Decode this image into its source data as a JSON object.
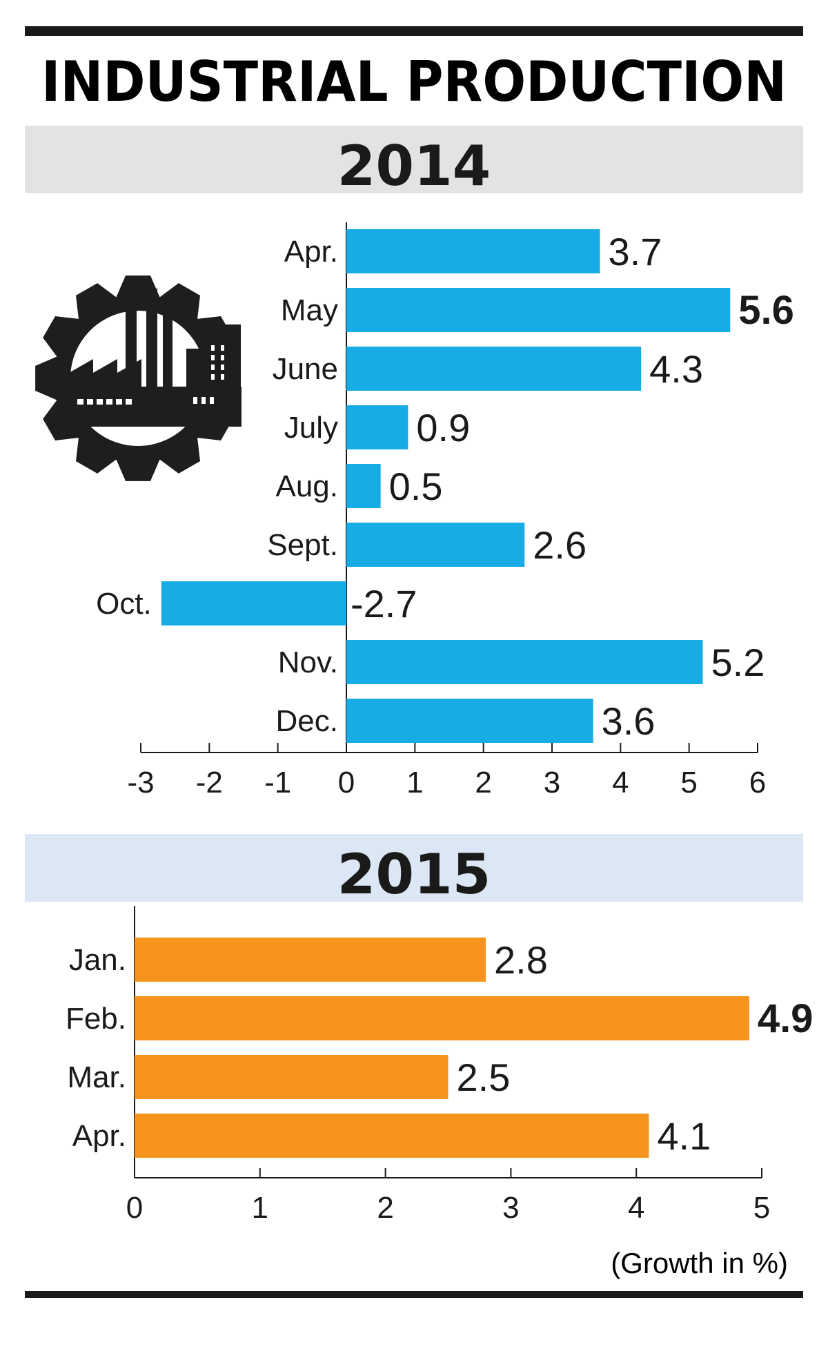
{
  "title": "INDUSTRIAL PRODUCTION",
  "note": "(Growth in %)",
  "colors": {
    "bar_2014": "#18ace6",
    "bar_2015": "#f7941d",
    "band_2014": "#e3e3e3",
    "band_2015": "#dbe7f4",
    "ink": "#1a1a1a",
    "icon": "#1e1e1e"
  },
  "icon": "factory-gear-icon",
  "chart_data": [
    {
      "type": "bar",
      "orientation": "horizontal",
      "title": "2014",
      "categories": [
        "Apr.",
        "May",
        "June",
        "July",
        "Aug.",
        "Sept.",
        "Oct.",
        "Nov.",
        "Dec."
      ],
      "values": [
        3.7,
        5.6,
        4.3,
        0.9,
        0.5,
        2.6,
        -2.7,
        5.2,
        3.6
      ],
      "value_labels": [
        "3.7",
        "5.6",
        "4.3",
        "0.9",
        "0.5",
        "2.6",
        "-2.7",
        "5.2",
        "3.6"
      ],
      "highlight": [
        "May"
      ],
      "xlim": [
        -3,
        6
      ],
      "xticks": [
        -3,
        -2,
        -1,
        0,
        1,
        2,
        3,
        4,
        5,
        6
      ],
      "xlabel": "",
      "ylabel": "",
      "grid": false,
      "legend": "none"
    },
    {
      "type": "bar",
      "orientation": "horizontal",
      "title": "2015",
      "categories": [
        "Jan.",
        "Feb.",
        "Mar.",
        "Apr."
      ],
      "values": [
        2.8,
        4.9,
        2.5,
        4.1
      ],
      "value_labels": [
        "2.8",
        "4.9",
        "2.5",
        "4.1"
      ],
      "highlight": [
        "Feb."
      ],
      "xlim": [
        0,
        5
      ],
      "xticks": [
        0,
        1,
        2,
        3,
        4,
        5
      ],
      "xlabel": "(Growth in %)",
      "ylabel": "",
      "grid": false,
      "legend": "none"
    }
  ]
}
